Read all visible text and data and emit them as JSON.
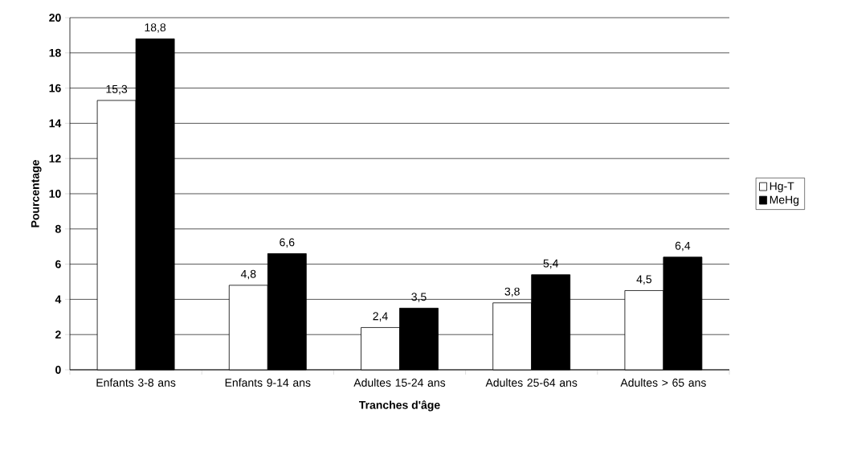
{
  "chart_data": {
    "type": "bar",
    "xlabel": "Tranches d'âge",
    "ylabel": "Pourcentage",
    "categories": [
      "Enfants 3-8 ans",
      "Enfants 9-14 ans",
      "Adultes 15-24 ans",
      "Adultes 25-64 ans",
      "Adultes > 65 ans"
    ],
    "series": [
      {
        "name": "Hg-T",
        "color": "#ffffff",
        "values": [
          15.3,
          4.8,
          2.4,
          3.8,
          4.5
        ],
        "value_labels": [
          "15,3",
          "4,8",
          "2,4",
          "3,8",
          "4,5"
        ]
      },
      {
        "name": "MeHg",
        "color": "#000000",
        "values": [
          18.8,
          6.6,
          3.5,
          5.4,
          6.4
        ],
        "value_labels": [
          "18,8",
          "6,6",
          "3,5",
          "5,4",
          "6,4"
        ]
      }
    ],
    "ylim": [
      0,
      20
    ],
    "yticks": [
      0,
      2,
      4,
      6,
      8,
      10,
      12,
      14,
      16,
      18,
      20
    ],
    "grid": "y",
    "legend": "right"
  }
}
